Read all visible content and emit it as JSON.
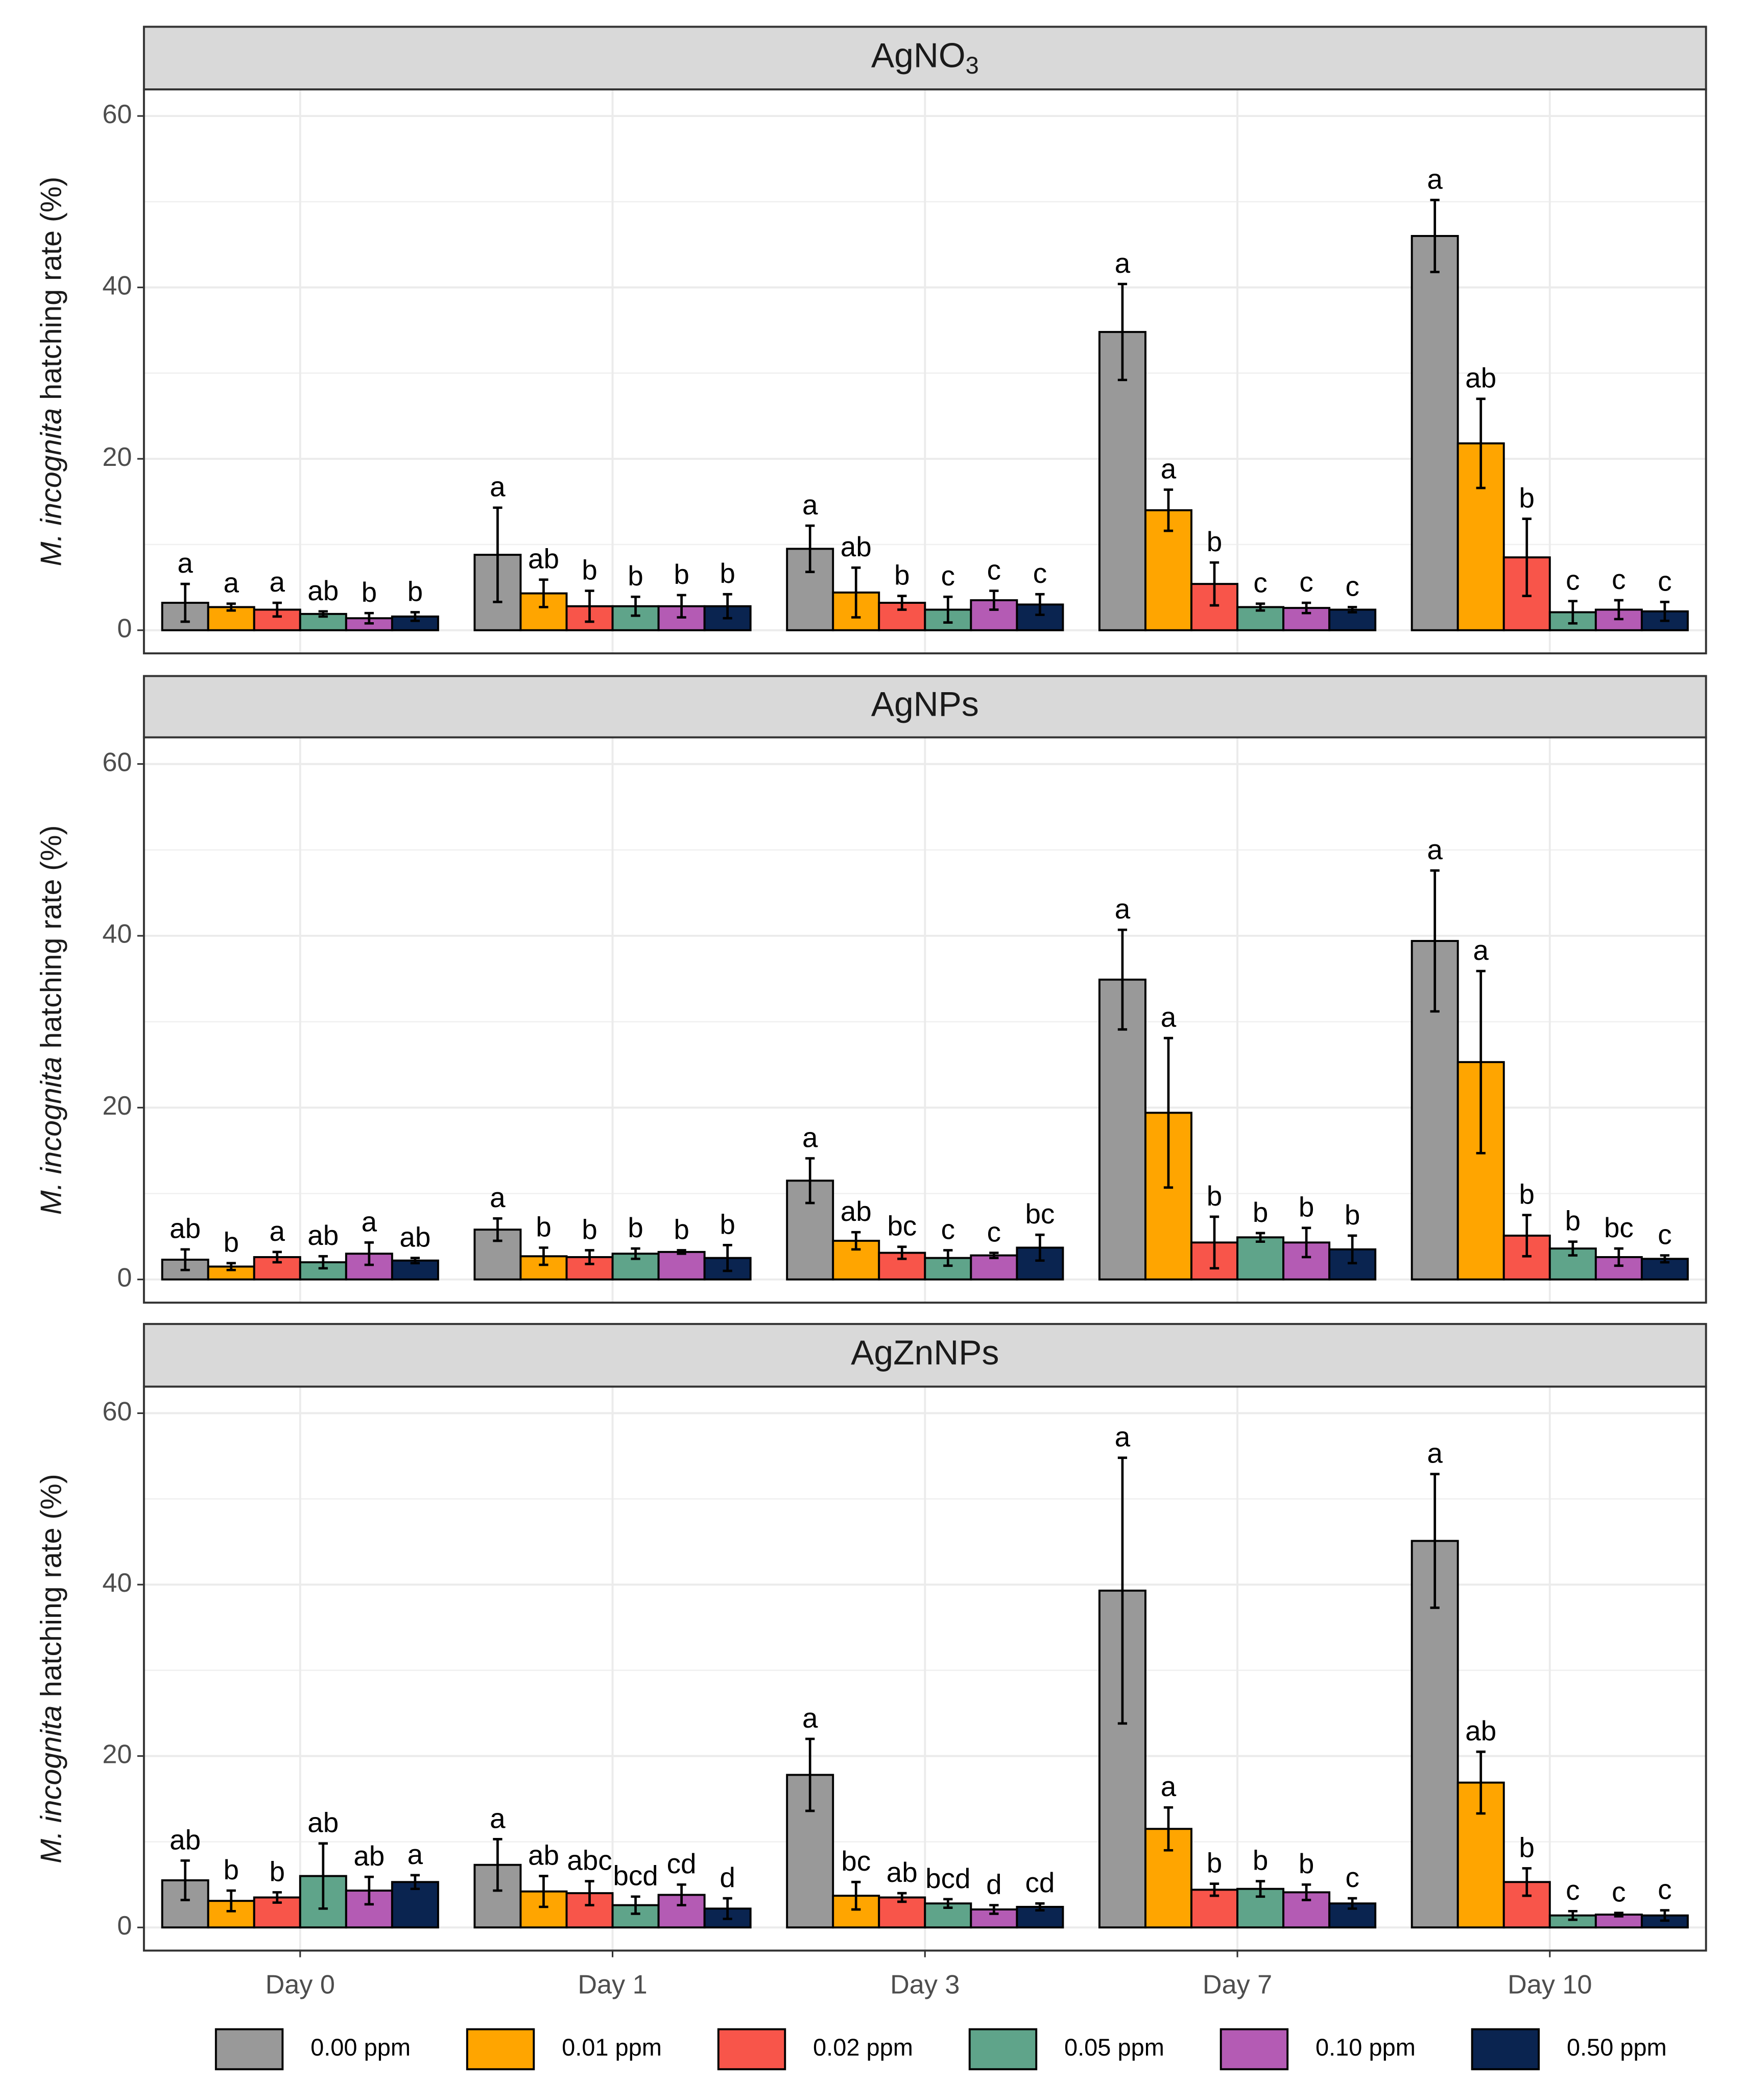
{
  "chart_data": [
    {
      "type": "bar",
      "title": "AgNO",
      "title_subscript": "3",
      "ylabel_italic": "M. incognita",
      "ylabel": "hatching rate (%)",
      "ylim": [
        -2.7,
        63.1
      ],
      "yticks": [
        0,
        20,
        40,
        60
      ],
      "minor_yticks": [
        10,
        30,
        50
      ],
      "grid": true,
      "series": [
        {
          "name": "0.00 ppm",
          "color": "#999999",
          "values": [
            3.2,
            8.8,
            9.5,
            34.8,
            46.0
          ],
          "errors": [
            2.2,
            5.5,
            2.7,
            5.6,
            4.2
          ],
          "labels": [
            "a",
            "a",
            "a",
            "a",
            "a"
          ]
        },
        {
          "name": "0.01 ppm",
          "color": "#FFA500",
          "values": [
            2.7,
            4.3,
            4.4,
            14.0,
            21.8
          ],
          "errors": [
            0.4,
            1.6,
            2.9,
            2.4,
            5.2
          ],
          "labels": [
            "a",
            "ab",
            "ab",
            "a",
            "ab"
          ]
        },
        {
          "name": "0.02 ppm",
          "color": "#F8554A",
          "values": [
            2.4,
            2.8,
            3.2,
            5.4,
            8.5
          ],
          "errors": [
            0.8,
            1.8,
            0.8,
            2.5,
            4.5
          ],
          "labels": [
            "a",
            "b",
            "b",
            "b",
            "b"
          ]
        },
        {
          "name": "0.05 ppm",
          "color": "#5FA48A",
          "values": [
            1.9,
            2.8,
            2.4,
            2.7,
            2.1
          ],
          "errors": [
            0.3,
            1.1,
            1.5,
            0.4,
            1.3
          ],
          "labels": [
            "ab",
            "b",
            "c",
            "c",
            "c"
          ]
        },
        {
          "name": "0.10 ppm",
          "color": "#B45BB4",
          "values": [
            1.4,
            2.8,
            3.5,
            2.6,
            2.4
          ],
          "errors": [
            0.6,
            1.3,
            1.1,
            0.6,
            1.1
          ],
          "labels": [
            "b",
            "b",
            "c",
            "c",
            "c"
          ]
        },
        {
          "name": "0.50 ppm",
          "color": "#0A2450",
          "values": [
            1.6,
            2.8,
            3.0,
            2.4,
            2.2
          ],
          "errors": [
            0.5,
            1.4,
            1.2,
            0.3,
            1.1
          ],
          "labels": [
            "b",
            "b",
            "c",
            "c",
            "c"
          ]
        }
      ]
    },
    {
      "type": "bar",
      "title": "AgNPs",
      "ylabel_italic": "M. incognita",
      "ylabel": "hatching rate (%)",
      "ylim": [
        -2.7,
        63.1
      ],
      "yticks": [
        0,
        20,
        40,
        60
      ],
      "minor_yticks": [
        10,
        30,
        50
      ],
      "grid": true,
      "series": [
        {
          "color": "#999999",
          "values": [
            2.3,
            5.8,
            11.5,
            34.9,
            39.4
          ],
          "errors": [
            1.2,
            1.3,
            2.6,
            5.8,
            8.2
          ],
          "labels": [
            "ab",
            "a",
            "a",
            "a",
            "a"
          ]
        },
        {
          "color": "#FFA500",
          "values": [
            1.5,
            2.7,
            4.5,
            19.4,
            25.3
          ],
          "errors": [
            0.4,
            1.0,
            1.0,
            8.7,
            10.6
          ],
          "labels": [
            "b",
            "b",
            "ab",
            "a",
            "a"
          ]
        },
        {
          "color": "#F8554A",
          "values": [
            2.6,
            2.6,
            3.1,
            4.3,
            5.1
          ],
          "errors": [
            0.6,
            0.8,
            0.7,
            3.0,
            2.4
          ],
          "labels": [
            "a",
            "b",
            "bc",
            "b",
            "b"
          ]
        },
        {
          "color": "#5FA48A",
          "values": [
            2.0,
            3.0,
            2.5,
            4.9,
            3.6
          ],
          "errors": [
            0.7,
            0.6,
            0.9,
            0.5,
            0.8
          ],
          "labels": [
            "ab",
            "b",
            "c",
            "b",
            "b"
          ]
        },
        {
          "color": "#B45BB4",
          "values": [
            3.0,
            3.2,
            2.8,
            4.3,
            2.6
          ],
          "errors": [
            1.3,
            0.2,
            0.3,
            1.7,
            1.0
          ],
          "labels": [
            "a",
            "b",
            "c",
            "b",
            "bc"
          ]
        },
        {
          "color": "#0A2450",
          "values": [
            2.2,
            2.5,
            3.7,
            3.5,
            2.4
          ],
          "errors": [
            0.3,
            1.5,
            1.5,
            1.6,
            0.4
          ],
          "labels": [
            "ab",
            "b",
            "bc",
            "b",
            "c"
          ]
        }
      ]
    },
    {
      "type": "bar",
      "title": "AgZnNPs",
      "ylabel_italic": "M. incognita",
      "ylabel": "hatching rate (%)",
      "categories": [
        "Day 0",
        "Day 1",
        "Day 3",
        "Day 7",
        "Day 10"
      ],
      "ylim": [
        -2.7,
        63.1
      ],
      "yticks": [
        0,
        20,
        40,
        60
      ],
      "minor_yticks": [
        10,
        30,
        50
      ],
      "grid": true,
      "series": [
        {
          "color": "#999999",
          "values": [
            5.5,
            7.3,
            17.8,
            39.3,
            45.1
          ],
          "errors": [
            2.3,
            3.0,
            4.2,
            15.5,
            7.8
          ],
          "labels": [
            "ab",
            "a",
            "a",
            "a",
            "a"
          ]
        },
        {
          "color": "#FFA500",
          "values": [
            3.1,
            4.2,
            3.7,
            11.5,
            16.9
          ],
          "errors": [
            1.2,
            1.8,
            1.6,
            2.5,
            3.6
          ],
          "labels": [
            "b",
            "ab",
            "bc",
            "a",
            "ab"
          ]
        },
        {
          "color": "#F8554A",
          "values": [
            3.5,
            4.0,
            3.5,
            4.4,
            5.3
          ],
          "errors": [
            0.6,
            1.4,
            0.5,
            0.7,
            1.6
          ],
          "labels": [
            "b",
            "abc",
            "ab",
            "b",
            "b"
          ]
        },
        {
          "color": "#5FA48A",
          "values": [
            6.0,
            2.6,
            2.8,
            4.5,
            1.4
          ],
          "errors": [
            3.8,
            1.0,
            0.5,
            0.9,
            0.5
          ],
          "labels": [
            "ab",
            "bcd",
            "bcd",
            "b",
            "c"
          ]
        },
        {
          "color": "#B45BB4",
          "values": [
            4.3,
            3.8,
            2.1,
            4.1,
            1.5
          ],
          "errors": [
            1.6,
            1.2,
            0.5,
            0.9,
            0.2
          ],
          "labels": [
            "ab",
            "cd",
            "d",
            "b",
            "c"
          ]
        },
        {
          "color": "#0A2450",
          "values": [
            5.3,
            2.2,
            2.4,
            2.8,
            1.4
          ],
          "errors": [
            0.8,
            1.2,
            0.4,
            0.6,
            0.6
          ],
          "labels": [
            "a",
            "d",
            "cd",
            "c",
            "c"
          ]
        }
      ]
    }
  ]
}
